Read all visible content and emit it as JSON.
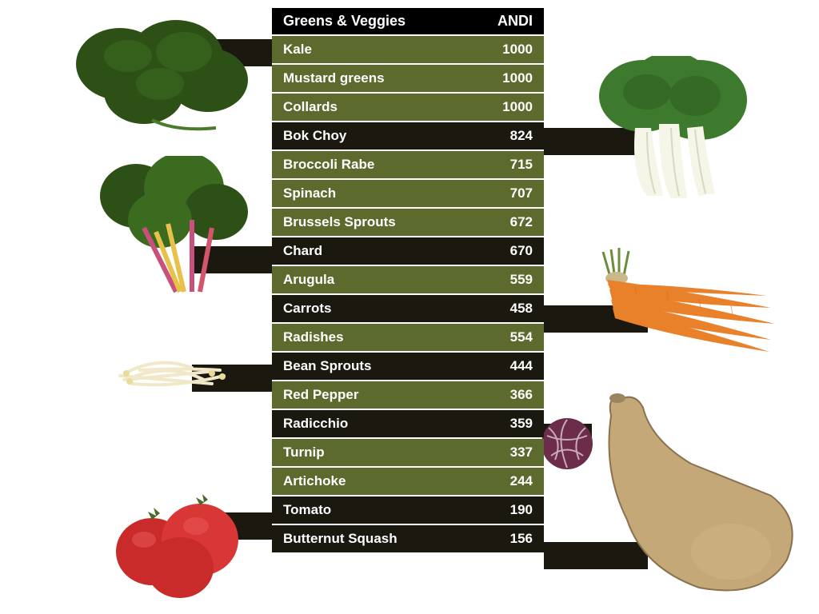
{
  "table": {
    "header": {
      "name": "Greens & Veggies",
      "score": "ANDI"
    },
    "header_bg": "#000000",
    "row_bg_primary": "#5d6a2d",
    "row_bg_secondary": "#1a180f",
    "text_color": "#ffffff",
    "font_size": 17,
    "font_weight": "bold",
    "rows": [
      {
        "name": "Kale",
        "score": "1000",
        "bg": "primary"
      },
      {
        "name": "Mustard greens",
        "score": "1000",
        "bg": "primary"
      },
      {
        "name": "Collards",
        "score": "1000",
        "bg": "primary"
      },
      {
        "name": "Bok Choy",
        "score": "824",
        "bg": "secondary"
      },
      {
        "name": "Broccoli Rabe",
        "score": "715",
        "bg": "primary"
      },
      {
        "name": "Spinach",
        "score": "707",
        "bg": "primary"
      },
      {
        "name": "Brussels Sprouts",
        "score": "672",
        "bg": "primary"
      },
      {
        "name": "Chard",
        "score": "670",
        "bg": "secondary"
      },
      {
        "name": "Arugula",
        "score": "559",
        "bg": "primary"
      },
      {
        "name": "Carrots",
        "score": "458",
        "bg": "secondary"
      },
      {
        "name": "Radishes",
        "score": "554",
        "bg": "primary"
      },
      {
        "name": "Bean Sprouts",
        "score": "444",
        "bg": "secondary"
      },
      {
        "name": "Red Pepper",
        "score": "366",
        "bg": "primary"
      },
      {
        "name": "Radicchio",
        "score": "359",
        "bg": "secondary"
      },
      {
        "name": "Turnip",
        "score": "337",
        "bg": "primary"
      },
      {
        "name": "Artichoke",
        "score": "244",
        "bg": "primary"
      },
      {
        "name": "Tomato",
        "score": "190",
        "bg": "secondary"
      },
      {
        "name": "Butternut Squash",
        "score": "156",
        "bg": "secondary"
      }
    ]
  },
  "colors": {
    "primary": "#5d6a2d",
    "secondary": "#1a180f",
    "kale_green": "#2d5016",
    "chard_green": "#3a6b1f",
    "chard_stem": "#c94f7c",
    "sprout": "#f0e8c8",
    "tomato": "#c92a2a",
    "bokchoy_leaf": "#3d7a2e",
    "bokchoy_stem": "#f5f5e8",
    "carrot": "#e8812a",
    "carrot_top": "#6b8e3d",
    "radicchio": "#6b2d4a",
    "squash": "#c4a878"
  },
  "images": [
    {
      "id": "kale",
      "label": "Kale illustration"
    },
    {
      "id": "chard",
      "label": "Swiss chard illustration"
    },
    {
      "id": "sprouts",
      "label": "Bean sprouts illustration"
    },
    {
      "id": "tomato",
      "label": "Tomatoes illustration"
    },
    {
      "id": "bokchoy",
      "label": "Bok choy illustration"
    },
    {
      "id": "carrots",
      "label": "Carrots illustration"
    },
    {
      "id": "radicchio",
      "label": "Radicchio illustration"
    },
    {
      "id": "squash",
      "label": "Butternut squash illustration"
    }
  ]
}
